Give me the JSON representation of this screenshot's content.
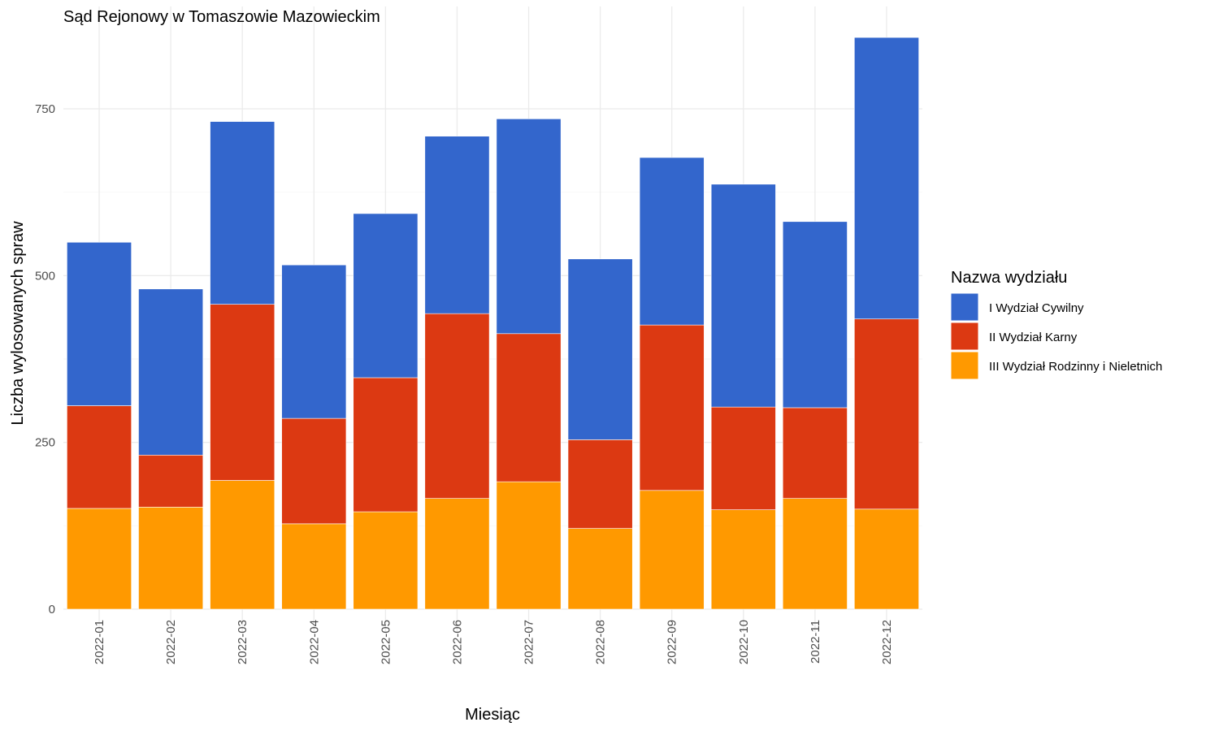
{
  "chart_data": {
    "type": "bar",
    "stacked": true,
    "title": "Sąd Rejonowy w Tomaszowie Mazowieckim",
    "xlabel": "Miesiąc",
    "ylabel": "Liczba wylosowanych spraw",
    "ylim": [
      0,
      865
    ],
    "yticks": [
      0,
      250,
      500,
      750
    ],
    "grid": true,
    "legend_title": "Nazwa wydziału",
    "legend_position": "right",
    "categories": [
      "2022-01",
      "2022-02",
      "2022-03",
      "2022-04",
      "2022-05",
      "2022-06",
      "2022-07",
      "2022-08",
      "2022-09",
      "2022-10",
      "2022-11",
      "2022-12"
    ],
    "series": [
      {
        "name": "III Wydział Rodzinny i Nieletnich",
        "color": "#ff9900",
        "values": [
          151,
          153,
          193,
          128,
          146,
          166,
          191,
          121,
          178,
          149,
          166,
          150
        ]
      },
      {
        "name": "II Wydział Karny",
        "color": "#dc3912",
        "values": [
          154,
          78,
          264,
          158,
          201,
          277,
          222,
          133,
          248,
          154,
          136,
          285
        ]
      },
      {
        "name": "I Wydział Cywilny",
        "color": "#3366cc",
        "values": [
          245,
          249,
          274,
          230,
          246,
          266,
          322,
          271,
          251,
          334,
          279,
          422
        ]
      }
    ]
  }
}
